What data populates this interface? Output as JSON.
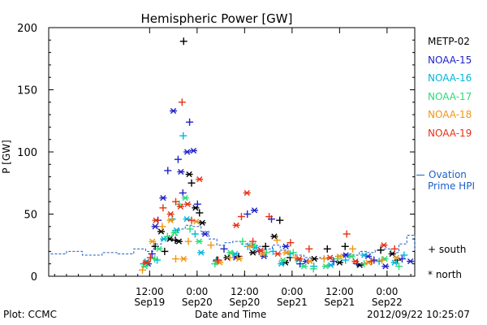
{
  "chart_data": {
    "type": "scatter",
    "title": "Hemispheric Power [GW]",
    "xlabel": "Date and Time",
    "ylabel": "P [GW]",
    "ylim": [
      0,
      200
    ],
    "y_ticks": [
      0,
      50,
      100,
      150,
      200
    ],
    "x_range_hours": [
      -13.5,
      79
    ],
    "x_ticks": [
      {
        "h": 12,
        "top": "12:00",
        "bottom": "Sep19"
      },
      {
        "h": 24,
        "top": "0:00",
        "bottom": "Sep20"
      },
      {
        "h": 36,
        "top": "12:00",
        "bottom": "Sep20"
      },
      {
        "h": 48,
        "top": "0:00",
        "bottom": "Sep21"
      },
      {
        "h": 60,
        "top": "12:00",
        "bottom": "Sep21"
      },
      {
        "h": 72,
        "top": "0:00",
        "bottom": "Sep22"
      }
    ],
    "legend_position": "right, outside plot",
    "symbols": {
      "south": "+",
      "north": "*"
    },
    "series": [
      {
        "name": "METP-02",
        "color": "#000000",
        "points": [
          [
            13.4,
            24
          ],
          [
            14.9,
            36
          ],
          [
            15.8,
            20
          ],
          [
            17.1,
            30
          ],
          [
            18.5,
            29
          ],
          [
            19.4,
            28
          ],
          [
            20.6,
            189
          ],
          [
            22,
            82
          ],
          [
            22.6,
            75
          ],
          [
            23.6,
            55
          ],
          [
            24.6,
            51
          ],
          [
            25.3,
            43
          ],
          [
            29,
            13
          ],
          [
            31.6,
            15
          ],
          [
            34.5,
            16
          ],
          [
            38.1,
            19
          ],
          [
            41.3,
            24
          ],
          [
            43.5,
            32
          ],
          [
            44.9,
            45
          ],
          [
            46.3,
            11
          ],
          [
            47.5,
            15
          ],
          [
            53.6,
            14
          ],
          [
            56.9,
            22
          ],
          [
            60,
            11
          ],
          [
            61.4,
            24
          ],
          [
            65.1,
            9
          ],
          [
            70.4,
            21
          ],
          [
            73.3,
            18
          ],
          [
            74.6,
            13
          ]
        ]
      },
      {
        "name": "NOAA-15",
        "color": "#1f24c8",
        "points": [
          [
            11.6,
            10
          ],
          [
            12.6,
            18
          ],
          [
            13.4,
            40
          ],
          [
            14.1,
            45
          ],
          [
            15.4,
            63
          ],
          [
            16.6,
            85
          ],
          [
            18,
            133
          ],
          [
            19.2,
            94
          ],
          [
            19.9,
            84
          ],
          [
            20.4,
            67
          ],
          [
            21.5,
            100
          ],
          [
            22.1,
            124
          ],
          [
            23.1,
            101
          ],
          [
            24.1,
            58
          ],
          [
            26,
            34
          ],
          [
            30.8,
            22
          ],
          [
            33.8,
            15
          ],
          [
            36.7,
            50
          ],
          [
            38.5,
            53
          ],
          [
            39.7,
            20
          ],
          [
            40.9,
            16
          ],
          [
            42.8,
            46
          ],
          [
            46.4,
            24
          ],
          [
            50,
            10
          ],
          [
            51.6,
            12
          ],
          [
            58.5,
            12
          ],
          [
            61.6,
            17
          ],
          [
            64.5,
            10
          ],
          [
            67.2,
            16
          ],
          [
            68.7,
            13
          ],
          [
            71.6,
            8
          ],
          [
            75.8,
            14
          ],
          [
            77.9,
            12
          ]
        ]
      },
      {
        "name": "NOAA-16",
        "color": "#00b4dc",
        "points": [
          [
            10.5,
            10
          ],
          [
            11.3,
            12
          ],
          [
            13.9,
            13
          ],
          [
            15.6,
            30
          ],
          [
            17.7,
            46
          ],
          [
            18.8,
            37
          ],
          [
            20.5,
            113
          ],
          [
            21.4,
            46
          ],
          [
            23.5,
            34
          ],
          [
            25,
            19
          ],
          [
            28.8,
            12
          ],
          [
            33.6,
            18
          ],
          [
            36.8,
            24
          ],
          [
            38.7,
            23
          ],
          [
            43.2,
            20
          ],
          [
            45.3,
            10
          ],
          [
            47.5,
            18
          ],
          [
            49.6,
            13
          ],
          [
            53.5,
            8
          ],
          [
            57.8,
            9
          ],
          [
            61.5,
            13
          ],
          [
            66.2,
            17
          ],
          [
            70,
            12
          ],
          [
            73.9,
            11
          ],
          [
            76.3,
            17
          ]
        ]
      },
      {
        "name": "NOAA-17",
        "color": "#28dc78",
        "points": [
          [
            10.8,
            8
          ],
          [
            13.3,
            14
          ],
          [
            14.4,
            22
          ],
          [
            16.5,
            32
          ],
          [
            18.3,
            35
          ],
          [
            19.5,
            58
          ],
          [
            21,
            63
          ],
          [
            22.2,
            38
          ],
          [
            24.5,
            28
          ],
          [
            28.5,
            10
          ],
          [
            32.4,
            19
          ],
          [
            35.5,
            28
          ],
          [
            38.2,
            25
          ],
          [
            41.5,
            19
          ],
          [
            45.7,
            13
          ],
          [
            48.3,
            19
          ],
          [
            51,
            8
          ],
          [
            53.4,
            6
          ],
          [
            56.5,
            8
          ],
          [
            59.5,
            14
          ],
          [
            63,
            16
          ],
          [
            66.2,
            10
          ],
          [
            71.4,
            14
          ],
          [
            75,
            8
          ]
        ]
      },
      {
        "name": "NOAA-18",
        "color": "#f09614",
        "points": [
          [
            10.2,
            5
          ],
          [
            12.7,
            28
          ],
          [
            15.2,
            40
          ],
          [
            17.3,
            45
          ],
          [
            18.6,
            14
          ],
          [
            20.6,
            14
          ],
          [
            21.8,
            28
          ],
          [
            23.8,
            44
          ],
          [
            27.5,
            25
          ],
          [
            29.7,
            11
          ],
          [
            32.3,
            15
          ],
          [
            34.6,
            14
          ],
          [
            37.3,
            24
          ],
          [
            40.5,
            18
          ],
          [
            44.2,
            29
          ],
          [
            46.5,
            19
          ],
          [
            48.8,
            15
          ],
          [
            52.5,
            12
          ],
          [
            56.1,
            14
          ],
          [
            60,
            16
          ],
          [
            63.3,
            22
          ],
          [
            67.3,
            11
          ],
          [
            70.7,
            13
          ],
          [
            74.4,
            15
          ]
        ]
      },
      {
        "name": "NOAA-19",
        "color": "#e63214",
        "points": [
          [
            11.1,
            11
          ],
          [
            12.2,
            15
          ],
          [
            13.6,
            45
          ],
          [
            15.4,
            55
          ],
          [
            17.3,
            50
          ],
          [
            18.6,
            60
          ],
          [
            19.8,
            56
          ],
          [
            20.2,
            140
          ],
          [
            21.6,
            58
          ],
          [
            22.6,
            45
          ],
          [
            24.6,
            78
          ],
          [
            29.3,
            13
          ],
          [
            33.9,
            41
          ],
          [
            35.2,
            48
          ],
          [
            36.6,
            67
          ],
          [
            38.1,
            28
          ],
          [
            40.1,
            21
          ],
          [
            42.2,
            48
          ],
          [
            44.4,
            18
          ],
          [
            47.6,
            27
          ],
          [
            49.8,
            14
          ],
          [
            52.3,
            22
          ],
          [
            57.6,
            15
          ],
          [
            61.8,
            34
          ],
          [
            64,
            12
          ],
          [
            68.1,
            12
          ],
          [
            71.2,
            25
          ],
          [
            73.9,
            22
          ]
        ]
      }
    ],
    "ovation_hpi": {
      "name": "Ovation Prime HPI",
      "color": "#1e5fc8",
      "values": [
        [
          -13,
          18
        ],
        [
          -9,
          20
        ],
        [
          -5,
          17
        ],
        [
          0,
          19
        ],
        [
          4,
          18
        ],
        [
          8,
          22
        ],
        [
          11,
          20
        ],
        [
          13,
          26
        ],
        [
          15,
          30
        ],
        [
          17,
          33
        ],
        [
          19,
          38
        ],
        [
          21,
          41
        ],
        [
          23,
          40
        ],
        [
          25,
          36
        ],
        [
          27,
          30
        ],
        [
          29,
          25
        ],
        [
          31,
          27
        ],
        [
          33,
          28
        ],
        [
          35,
          26
        ],
        [
          37,
          25
        ],
        [
          39,
          24
        ],
        [
          41,
          22
        ],
        [
          43,
          25
        ],
        [
          45,
          21
        ],
        [
          47,
          19
        ],
        [
          49,
          17
        ],
        [
          51,
          15
        ],
        [
          53,
          14
        ],
        [
          55,
          15
        ],
        [
          57,
          14
        ],
        [
          59,
          16
        ],
        [
          61,
          18
        ],
        [
          63,
          17
        ],
        [
          65,
          20
        ],
        [
          67,
          19
        ],
        [
          69,
          21
        ],
        [
          71,
          22
        ],
        [
          73,
          19
        ],
        [
          75,
          26
        ],
        [
          77,
          33
        ],
        [
          79,
          20
        ]
      ]
    }
  },
  "legend": {
    "entries": [
      {
        "label": "METP-02",
        "color": "#000000"
      },
      {
        "label": "NOAA-15",
        "color": "#1f24c8"
      },
      {
        "label": "NOAA-16",
        "color": "#00b4dc"
      },
      {
        "label": "NOAA-17",
        "color": "#28dc78"
      },
      {
        "label": "NOAA-18",
        "color": "#f09614"
      },
      {
        "label": "NOAA-19",
        "color": "#e63214"
      }
    ],
    "ovation_line1": "Ovation",
    "ovation_line2": "Prime HPI",
    "south_label": "+ south",
    "north_label": "* north"
  },
  "footer": {
    "plot_label": "Plot: CCMC",
    "xlabel": "Date and Time",
    "timestamp": "2012/09/22 10:25:07"
  }
}
